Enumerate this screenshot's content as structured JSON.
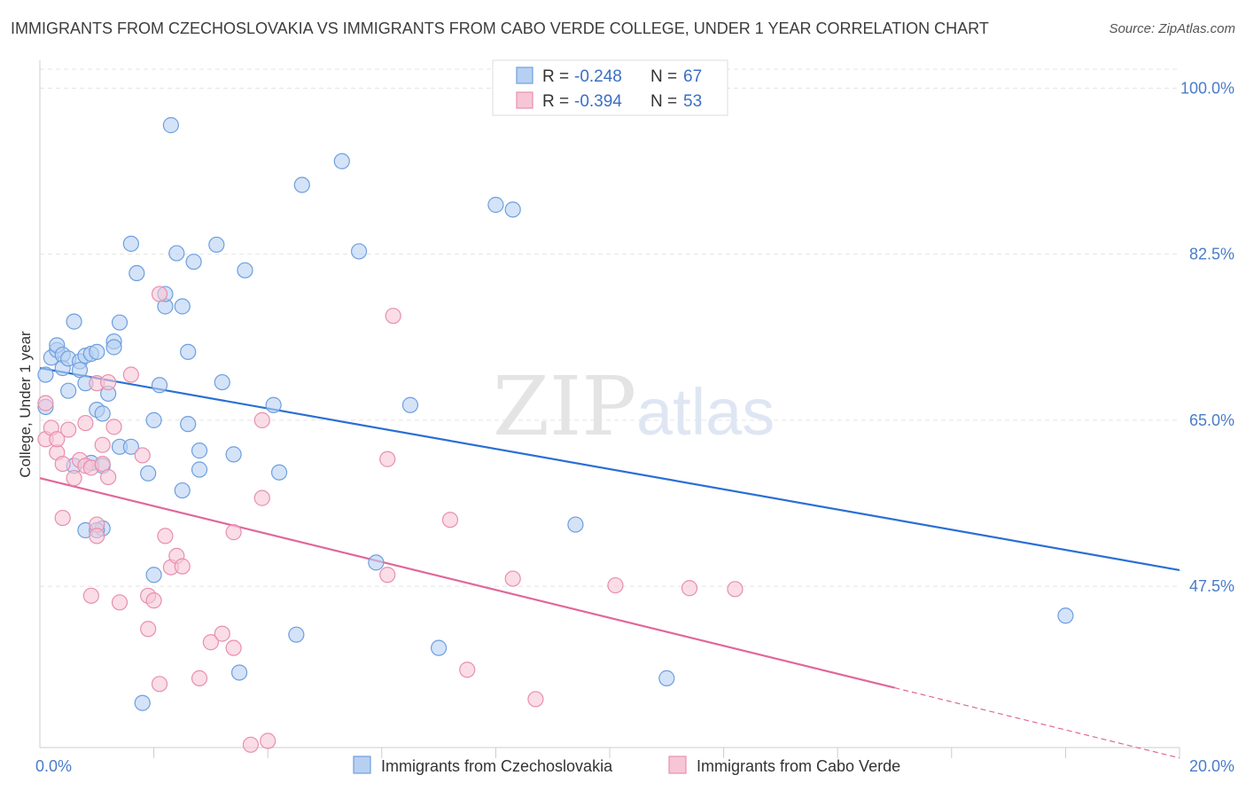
{
  "title": "IMMIGRANTS FROM CZECHOSLOVAKIA VS IMMIGRANTS FROM CABO VERDE COLLEGE, UNDER 1 YEAR CORRELATION CHART",
  "source": "Source: ZipAtlas.com",
  "watermark": {
    "zip": "ZIP",
    "atlas": "atlas"
  },
  "colors": {
    "blue_fill": "#b7d0f2",
    "blue_stroke": "#6d9fe0",
    "blue_line": "#2a6fd4",
    "pink_fill": "#f7c6d6",
    "pink_stroke": "#e88fae",
    "pink_line": "#e0679a",
    "grid": "#e3e3e3",
    "tick_label": "#4a7cc7"
  },
  "legend": {
    "rows": [
      {
        "r_label": "R = ",
        "r_value": "-0.248",
        "n_label": "N = ",
        "n_value": "67"
      },
      {
        "r_label": "R = ",
        "r_value": "-0.394",
        "n_label": "N = ",
        "n_value": "53"
      }
    ]
  },
  "bottom_legend": [
    "Immigrants from Czechoslovakia",
    "Immigrants from Cabo Verde"
  ],
  "chart_data": {
    "type": "scatter",
    "xlabel": "",
    "ylabel": "College, Under 1 year",
    "xlim": [
      0,
      20
    ],
    "ylim": [
      30.5,
      102
    ],
    "x_tick_labels": [
      {
        "value": 0,
        "label": "0.0%"
      },
      {
        "value": 20,
        "label": "20.0%"
      }
    ],
    "x_minor_ticks": [
      2,
      4,
      6,
      8,
      10,
      12,
      14,
      16,
      18,
      20
    ],
    "y_ticks": [
      {
        "value": 100,
        "label": "100.0%"
      },
      {
        "value": 82.5,
        "label": "82.5%"
      },
      {
        "value": 65,
        "label": "65.0%"
      },
      {
        "value": 47.5,
        "label": "47.5%"
      }
    ],
    "grid": true,
    "legend_position": "top-center",
    "series": [
      {
        "name": "Immigrants from Czechoslovakia",
        "trend": {
          "x": [
            0,
            20
          ],
          "y": [
            70.5,
            49.2
          ]
        },
        "points": [
          [
            0.1,
            69.8
          ],
          [
            0.1,
            66.4
          ],
          [
            0.2,
            71.6
          ],
          [
            0.3,
            72.4
          ],
          [
            0.3,
            72.9
          ],
          [
            0.4,
            71.9
          ],
          [
            0.4,
            70.5
          ],
          [
            0.5,
            68.1
          ],
          [
            0.5,
            71.5
          ],
          [
            0.6,
            75.4
          ],
          [
            0.7,
            71.2
          ],
          [
            0.7,
            70.3
          ],
          [
            0.8,
            71.8
          ],
          [
            0.8,
            68.9
          ],
          [
            0.9,
            72.0
          ],
          [
            0.9,
            60.5
          ],
          [
            1.0,
            72.2
          ],
          [
            1.0,
            66.1
          ],
          [
            1.1,
            65.7
          ],
          [
            1.1,
            60.2
          ],
          [
            1.1,
            53.6
          ],
          [
            1.2,
            67.8
          ],
          [
            1.4,
            75.3
          ],
          [
            1.3,
            73.3
          ],
          [
            1.3,
            72.7
          ],
          [
            1.4,
            62.2
          ],
          [
            1.6,
            62.2
          ],
          [
            1.6,
            83.6
          ],
          [
            1.7,
            80.5
          ],
          [
            1.9,
            59.4
          ],
          [
            2.0,
            65.0
          ],
          [
            2.0,
            48.7
          ],
          [
            2.1,
            68.7
          ],
          [
            2.2,
            77.0
          ],
          [
            2.2,
            78.3
          ],
          [
            2.3,
            96.1
          ],
          [
            2.4,
            82.6
          ],
          [
            2.5,
            77.0
          ],
          [
            2.5,
            57.6
          ],
          [
            2.6,
            72.2
          ],
          [
            2.6,
            64.6
          ],
          [
            2.7,
            81.7
          ],
          [
            2.8,
            61.8
          ],
          [
            2.8,
            59.8
          ],
          [
            3.1,
            83.5
          ],
          [
            3.2,
            69.0
          ],
          [
            3.4,
            61.4
          ],
          [
            3.6,
            80.8
          ],
          [
            3.5,
            38.4
          ],
          [
            4.1,
            66.6
          ],
          [
            4.2,
            59.5
          ],
          [
            4.6,
            89.8
          ],
          [
            4.5,
            42.4
          ],
          [
            5.3,
            92.3
          ],
          [
            5.6,
            82.8
          ],
          [
            5.9,
            50.0
          ],
          [
            6.5,
            66.6
          ],
          [
            7.0,
            41.0
          ],
          [
            8.0,
            87.7
          ],
          [
            8.3,
            87.2
          ],
          [
            9.4,
            54.0
          ],
          [
            11.0,
            37.8
          ],
          [
            18.0,
            44.4
          ],
          [
            1.8,
            35.2
          ],
          [
            0.8,
            53.4
          ],
          [
            1.0,
            53.4
          ],
          [
            0.6,
            60.2
          ]
        ]
      },
      {
        "name": "Immigrants from Cabo Verde",
        "trend": {
          "x": [
            0,
            15.0
          ],
          "y": [
            58.9,
            36.8
          ]
        },
        "trend_dashed": {
          "x": [
            15.0,
            20
          ],
          "y": [
            36.8,
            29.4
          ]
        },
        "points": [
          [
            0.1,
            66.8
          ],
          [
            0.1,
            63.0
          ],
          [
            0.2,
            64.2
          ],
          [
            0.3,
            61.6
          ],
          [
            0.3,
            63.0
          ],
          [
            0.4,
            60.4
          ],
          [
            0.4,
            54.7
          ],
          [
            0.5,
            64.0
          ],
          [
            0.6,
            58.9
          ],
          [
            0.7,
            60.8
          ],
          [
            0.8,
            60.2
          ],
          [
            0.8,
            64.7
          ],
          [
            0.9,
            60.0
          ],
          [
            0.9,
            46.5
          ],
          [
            1.0,
            54.0
          ],
          [
            1.0,
            52.8
          ],
          [
            1.0,
            68.9
          ],
          [
            1.1,
            60.4
          ],
          [
            1.1,
            62.4
          ],
          [
            1.2,
            69.0
          ],
          [
            1.3,
            64.3
          ],
          [
            1.4,
            45.8
          ],
          [
            1.6,
            69.8
          ],
          [
            1.8,
            61.3
          ],
          [
            1.9,
            43.0
          ],
          [
            1.9,
            46.5
          ],
          [
            2.0,
            46.0
          ],
          [
            2.1,
            37.2
          ],
          [
            2.1,
            78.3
          ],
          [
            2.2,
            52.8
          ],
          [
            2.3,
            49.5
          ],
          [
            2.4,
            50.7
          ],
          [
            2.5,
            49.6
          ],
          [
            2.8,
            37.8
          ],
          [
            3.0,
            41.6
          ],
          [
            3.2,
            42.5
          ],
          [
            3.4,
            41.0
          ],
          [
            3.4,
            53.2
          ],
          [
            3.7,
            30.8
          ],
          [
            3.9,
            56.8
          ],
          [
            3.9,
            65.0
          ],
          [
            4.0,
            31.2
          ],
          [
            6.2,
            76.0
          ],
          [
            6.1,
            60.9
          ],
          [
            6.1,
            48.7
          ],
          [
            7.2,
            54.5
          ],
          [
            7.5,
            38.7
          ],
          [
            8.3,
            48.3
          ],
          [
            8.7,
            35.6
          ],
          [
            10.1,
            47.6
          ],
          [
            11.4,
            47.3
          ],
          [
            12.2,
            47.2
          ],
          [
            1.2,
            59.0
          ]
        ]
      }
    ]
  }
}
